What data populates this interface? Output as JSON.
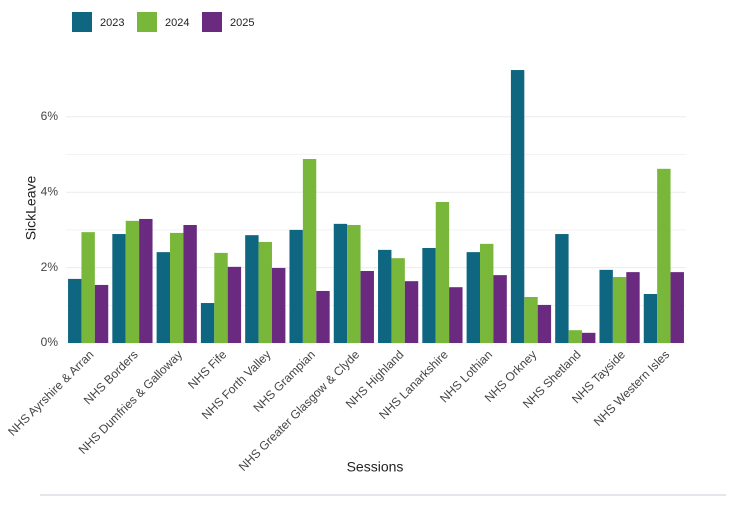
{
  "chart_data": {
    "type": "bar",
    "x_label": "Sessions",
    "y_label": "SickLeave",
    "categories": [
      "NHS Ayrshire & Arran",
      "NHS Borders",
      "NHS Dumfries & Galloway",
      "NHS Fife",
      "NHS Forth Valley",
      "NHS Grampian",
      "NHS Greater Glasgow & Clyde",
      "NHS Highland",
      "NHS Lanarkshire",
      "NHS Lothian",
      "NHS Orkney",
      "NHS Shetland",
      "NHS Tayside",
      "NHS Western Isles"
    ],
    "series": [
      {
        "name": "2023",
        "color": "#0e6680",
        "values": [
          1.7,
          2.89,
          2.41,
          1.06,
          2.86,
          3.0,
          3.16,
          2.47,
          2.52,
          2.41,
          7.24,
          2.89,
          1.94,
          1.3
        ]
      },
      {
        "name": "2024",
        "color": "#78b73a",
        "values": [
          2.94,
          3.24,
          2.92,
          2.39,
          2.68,
          4.88,
          3.13,
          2.25,
          3.74,
          2.63,
          1.22,
          0.34,
          1.75,
          4.62
        ]
      },
      {
        "name": "2025",
        "color": "#6a2a7f",
        "values": [
          1.54,
          3.29,
          3.13,
          2.02,
          1.99,
          1.38,
          1.91,
          1.64,
          1.48,
          1.8,
          1.01,
          0.27,
          1.88,
          1.88
        ]
      }
    ],
    "ylim": [
      0,
      7.4
    ],
    "yticks": [
      {
        "value": 0,
        "label": "0%"
      },
      {
        "value": 2,
        "label": "2%"
      },
      {
        "value": 4,
        "label": "4%"
      },
      {
        "value": 6,
        "label": "6%"
      }
    ],
    "grid": true,
    "legend": "top-left"
  }
}
